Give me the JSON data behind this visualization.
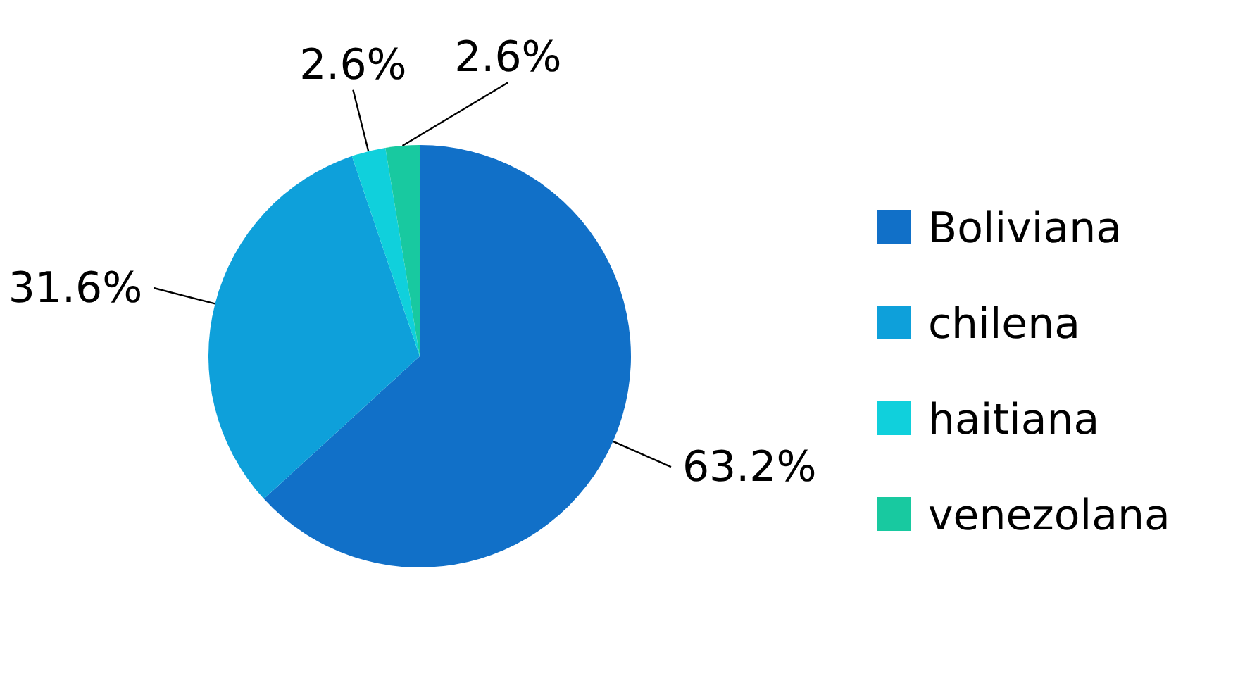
{
  "chart_data": {
    "type": "pie",
    "categories": [
      "Boliviana",
      "chilena",
      "haitiana",
      "venezolana"
    ],
    "values": [
      63.2,
      31.6,
      2.6,
      2.6
    ],
    "colors": [
      "#1170c8",
      "#0ea0da",
      "#10d0dc",
      "#18c9a0"
    ],
    "value_labels": [
      "63.2%",
      "31.6%",
      "2.6%",
      "2.6%"
    ],
    "legend": "right"
  }
}
